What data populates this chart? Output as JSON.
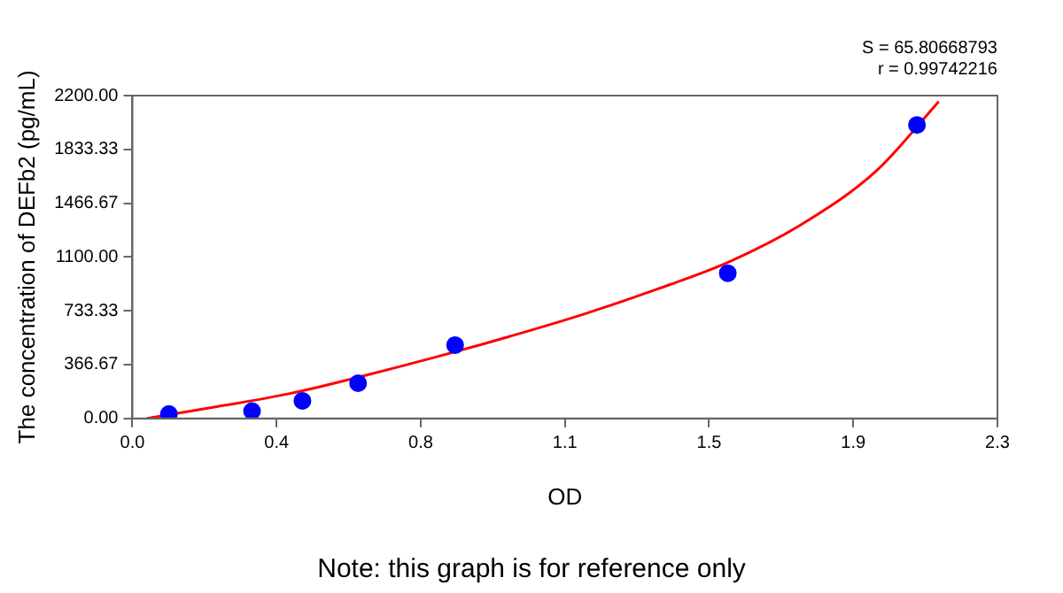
{
  "chart_data": {
    "type": "scatter",
    "xlabel": "OD",
    "ylabel": "The concentration of DEFb2 (pg/mL)",
    "xlim": [
      0,
      2.3
    ],
    "xticks": [
      {
        "value": 0,
        "label": "0.0"
      },
      {
        "value": 0.3833,
        "label": "0.4"
      },
      {
        "value": 0.7667,
        "label": "0.8"
      },
      {
        "value": 1.15,
        "label": "1.1"
      },
      {
        "value": 1.5333,
        "label": "1.5"
      },
      {
        "value": 1.9167,
        "label": "1.9"
      },
      {
        "value": 2.3,
        "label": "2.3"
      }
    ],
    "ylim": [
      0,
      2200
    ],
    "yticks": [
      {
        "value": 0,
        "label": "0.00"
      },
      {
        "value": 366.67,
        "label": "366.67"
      },
      {
        "value": 733.33,
        "label": "733.33"
      },
      {
        "value": 1100,
        "label": "1100.00"
      },
      {
        "value": 1466.67,
        "label": "1466.67"
      },
      {
        "value": 1833.33,
        "label": "1833.33"
      },
      {
        "value": 2200,
        "label": "2200.00"
      }
    ],
    "grid": false,
    "legend": false,
    "series": [
      {
        "color": "#0000ff",
        "marker": "circle",
        "x": [
          0.097,
          0.318,
          0.452,
          0.6,
          0.858,
          1.583,
          2.086
        ],
        "values": [
          30,
          50,
          120,
          240,
          500,
          990,
          2000
        ]
      },
      {
        "type": "line",
        "color": "#ff0000",
        "marker": "none",
        "line_style": "solid",
        "x": [
          0.039,
          0.224,
          0.419,
          0.614,
          0.809,
          1.004,
          1.199,
          1.394,
          1.589,
          1.784,
          1.979,
          2.144
        ],
        "values": [
          0,
          80,
          170,
          290,
          420,
          560,
          710,
          880,
          1070,
          1330,
          1690,
          2160
        ]
      }
    ],
    "annotations": [
      "S = 65.80668793",
      "r = 0.99742216",
      "Note: this graph is for reference only"
    ]
  }
}
